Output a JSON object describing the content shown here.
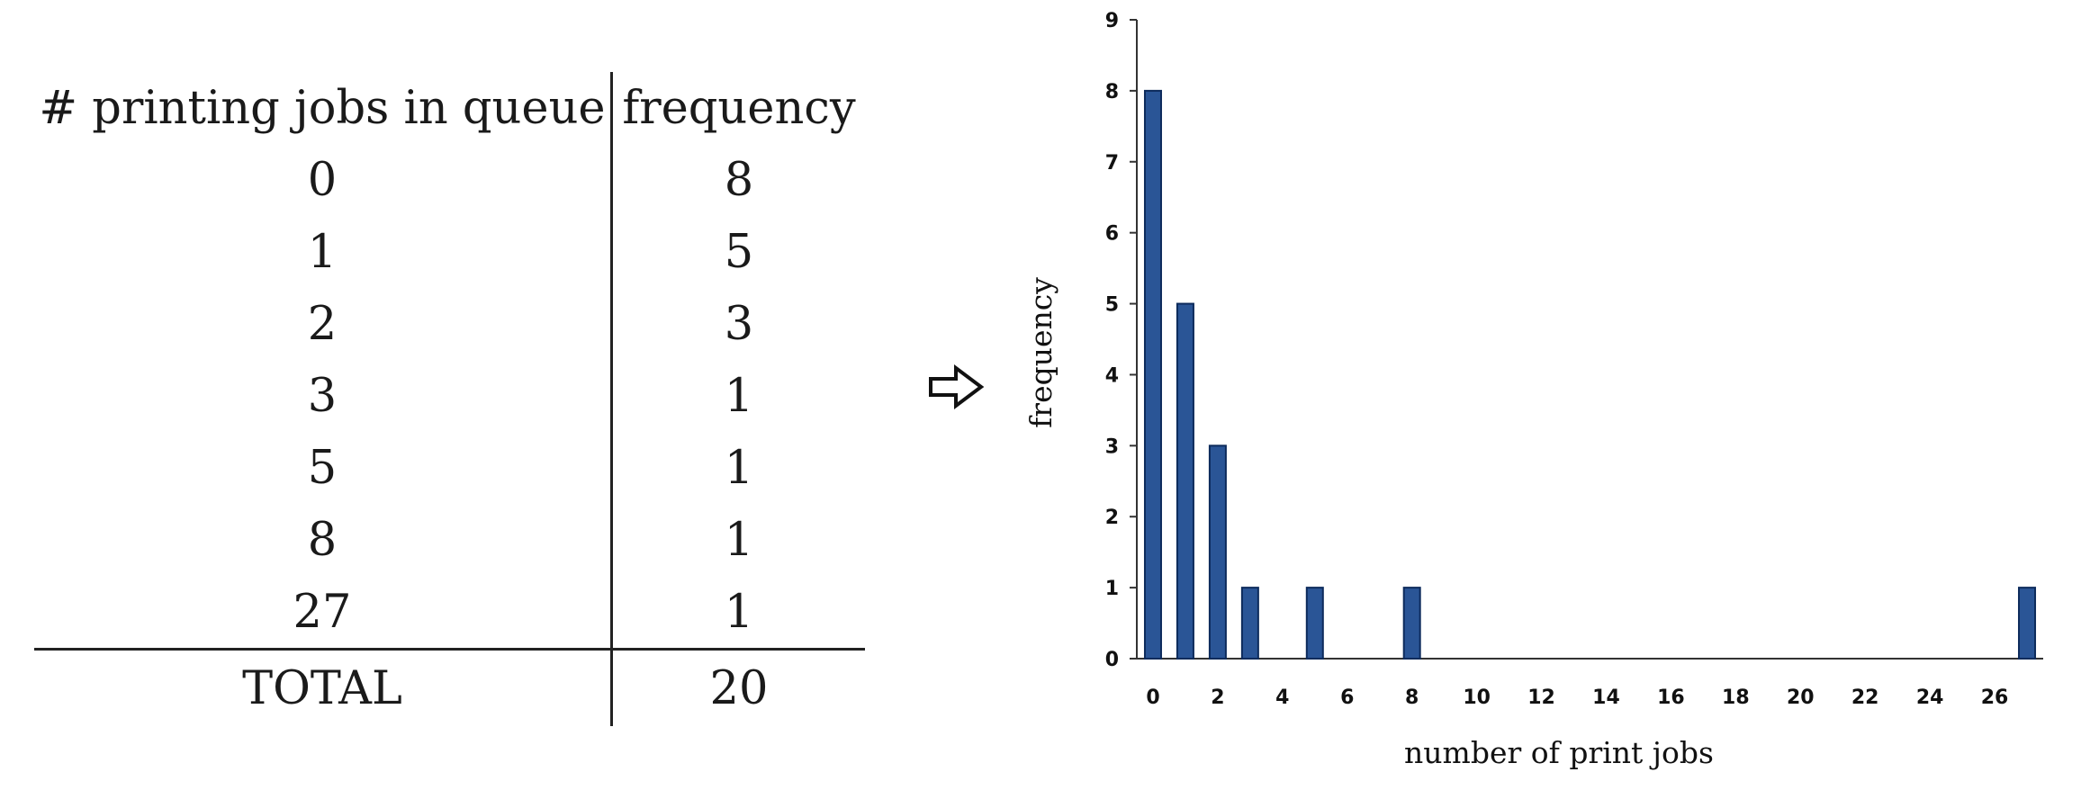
{
  "table": {
    "header_jobs": "# printing jobs in queue",
    "header_frequency": "frequency",
    "rows": [
      {
        "jobs": "0",
        "frequency": "8"
      },
      {
        "jobs": "1",
        "frequency": "5"
      },
      {
        "jobs": "2",
        "frequency": "3"
      },
      {
        "jobs": "3",
        "frequency": "1"
      },
      {
        "jobs": "5",
        "frequency": "1"
      },
      {
        "jobs": "8",
        "frequency": "1"
      },
      {
        "jobs": "27",
        "frequency": "1"
      }
    ],
    "total_label": "TOTAL",
    "total_value": "20"
  },
  "arrow_icon": "right-arrow-icon",
  "chart_data": {
    "type": "bar",
    "x": [
      0,
      1,
      2,
      3,
      5,
      8,
      27
    ],
    "values": [
      8,
      5,
      3,
      1,
      1,
      1,
      1
    ],
    "xlabel": "number of print jobs",
    "ylabel": "frequency",
    "xticks": [
      0,
      2,
      4,
      6,
      8,
      10,
      12,
      14,
      16,
      18,
      20,
      22,
      24,
      26
    ],
    "yticks": [
      0,
      1,
      2,
      3,
      4,
      5,
      6,
      7,
      8,
      9
    ],
    "xlim": [
      -0.5,
      27.5
    ],
    "ylim": [
      0,
      9
    ],
    "bar_color": "#2a5596",
    "bar_edge": "#0d2b5c",
    "grid": false
  }
}
